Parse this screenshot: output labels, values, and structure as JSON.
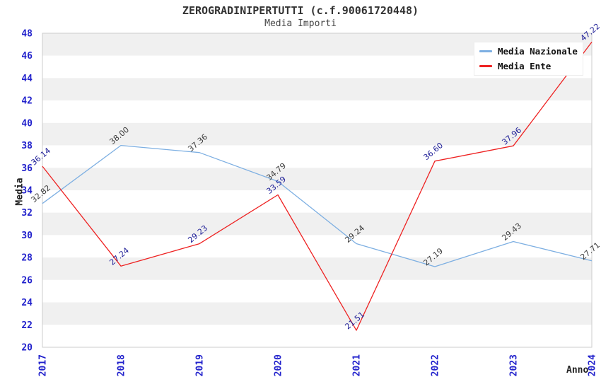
{
  "header": {
    "title": "ZEROGRADINIPERTUTTI (c.f.90061720448)",
    "subtitle": "Media Importi"
  },
  "chart_data": {
    "type": "line",
    "title": "ZEROGRADINIPERTUTTI (c.f.90061720448)",
    "subtitle": "Media Importi",
    "xlabel": "Anno",
    "ylabel": "Media",
    "categories": [
      "2017",
      "2018",
      "2019",
      "2020",
      "2021",
      "2022",
      "2023",
      "2024"
    ],
    "series": [
      {
        "name": "Media Nazionale",
        "color": "#7dafe2",
        "label_color": "#3c3c3c",
        "values": [
          32.82,
          38.0,
          37.36,
          34.79,
          29.24,
          27.19,
          29.43,
          27.71
        ]
      },
      {
        "name": "Media Ente",
        "color": "#ee2222",
        "label_color": "#1c1c96",
        "values": [
          36.14,
          27.24,
          29.23,
          33.59,
          21.51,
          36.6,
          37.96,
          47.22
        ]
      }
    ],
    "ylim": [
      20,
      48
    ],
    "ytick_step": 2,
    "yticks": [
      20,
      22,
      24,
      26,
      28,
      30,
      32,
      34,
      36,
      38,
      40,
      42,
      44,
      46,
      48
    ],
    "grid": "alternating-horizontal-bands",
    "band_color": "#f0f0f0",
    "plot_background": "#ffffff",
    "plot_border_color": "#cccccc",
    "axis_tick_color": "#2222cc",
    "point_label_decimals": 2,
    "legend_position": "top-right"
  }
}
